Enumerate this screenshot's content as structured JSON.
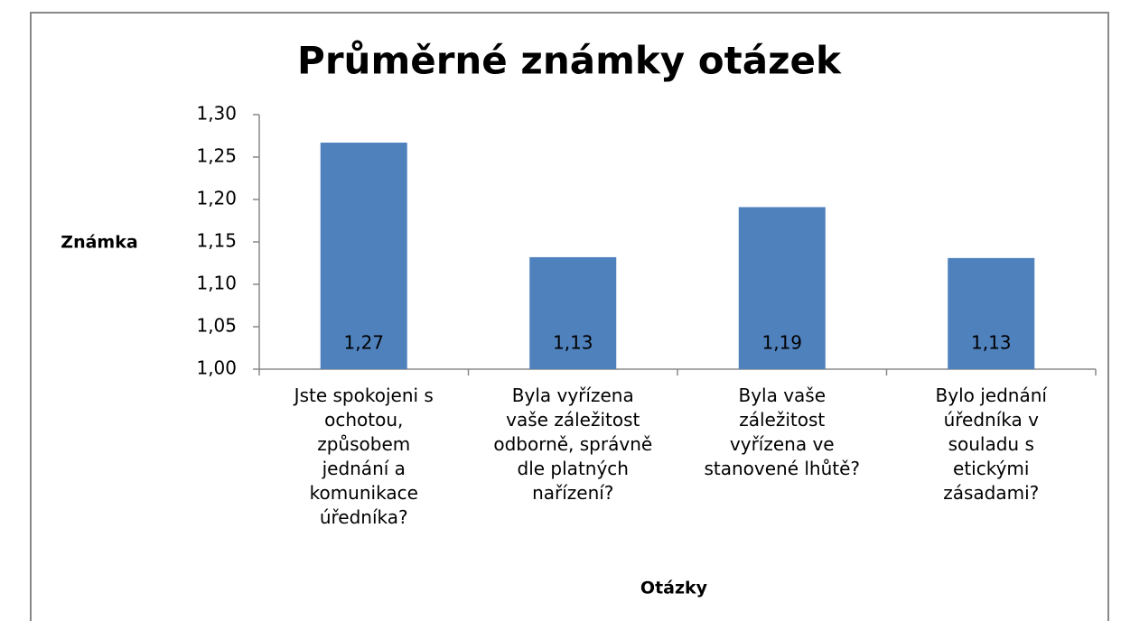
{
  "chart_data": {
    "type": "bar",
    "title": "Průměrné známky otázek",
    "x_label": "Otázky",
    "y_label": "Známka",
    "categories": [
      "Jste spokojeni s ochotou, způsobem jednání a komunikace úředníka?",
      "Byla vyřízena vaše záležitost odborně, správně dle platných nařízení?",
      "Byla vaše záležitost vyřízena ve stanovené lhůtě?",
      "Bylo jednání úředníka v souladu s etickými zásadami?"
    ],
    "values": [
      1.267,
      1.132,
      1.191,
      1.131
    ],
    "value_labels": [
      "1,27",
      "1,13",
      "1,19",
      "1,13"
    ],
    "color": "#4f81bd",
    "ylim": [
      1.0,
      1.3
    ],
    "yticks": [
      {
        "value": 1.0,
        "label": "1,00"
      },
      {
        "value": 1.05,
        "label": "1,05"
      },
      {
        "value": 1.1,
        "label": "1,10"
      },
      {
        "value": 1.15,
        "label": "1,15"
      },
      {
        "value": 1.2,
        "label": "1,20"
      },
      {
        "value": 1.25,
        "label": "1,25"
      },
      {
        "value": 1.3,
        "label": "1,30"
      }
    ],
    "grid": false
  }
}
